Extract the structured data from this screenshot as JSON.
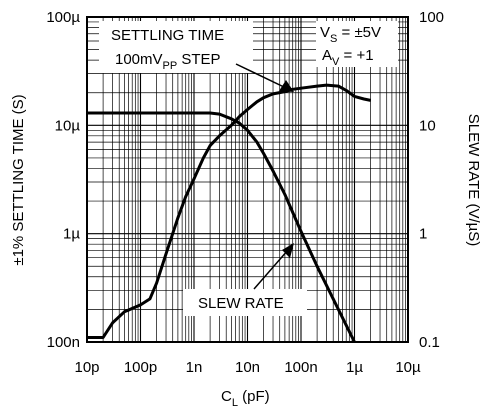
{
  "chart_data": {
    "type": "line",
    "x_scale": "log",
    "y_scale": "log",
    "grid": true,
    "xlim": [
      1e-11,
      1e-05
    ],
    "ylim_left": [
      1e-07,
      0.0001
    ],
    "ylim_right": [
      0.1,
      100
    ],
    "x_ticks": [
      {
        "value": 1e-11,
        "label": "10p"
      },
      {
        "value": 1e-10,
        "label": "100p"
      },
      {
        "value": 1e-09,
        "label": "1n"
      },
      {
        "value": 1e-08,
        "label": "10n"
      },
      {
        "value": 1e-07,
        "label": "100n"
      },
      {
        "value": 1e-06,
        "label": "1µ"
      },
      {
        "value": 1e-05,
        "label": "10µ"
      }
    ],
    "y_left_ticks": [
      {
        "value": 1e-07,
        "label": "100n"
      },
      {
        "value": 1e-06,
        "label": "1µ"
      },
      {
        "value": 1e-05,
        "label": "10µ"
      },
      {
        "value": 0.0001,
        "label": "100µ"
      }
    ],
    "y_right_ticks": [
      {
        "value": 0.1,
        "label": "0.1"
      },
      {
        "value": 1,
        "label": "1"
      },
      {
        "value": 10,
        "label": "10"
      },
      {
        "value": 100,
        "label": "100"
      }
    ],
    "xlabel": {
      "main": "C",
      "sub": "L",
      "rest": " (pF)"
    },
    "ylabel_left": "±1% SETTLING TIME (S)",
    "ylabel_right": "SLEW RATE (V/µS)",
    "series": [
      {
        "name": "SETTLING TIME",
        "axis": "left",
        "x": [
          1e-11,
          2e-11,
          3e-11,
          5e-11,
          1e-10,
          1.5e-10,
          2e-10,
          3e-10,
          5e-10,
          7e-10,
          1e-09,
          1.5e-09,
          2e-09,
          3e-09,
          5e-09,
          7e-09,
          1e-08,
          1.5e-08,
          2e-08,
          3e-08,
          5e-08,
          7e-08,
          1e-07,
          2e-07,
          3e-07,
          5e-07,
          7e-07,
          1e-06,
          1.5e-06,
          2e-06
        ],
        "y": [
          1.1e-07,
          1.1e-07,
          1.5e-07,
          1.9e-07,
          2.2e-07,
          2.5e-07,
          3.5e-07,
          6.5e-07,
          1.4e-06,
          2.2e-06,
          3.2e-06,
          5e-06,
          6.5e-06,
          8e-06,
          1e-05,
          1.2e-05,
          1.4e-05,
          1.65e-05,
          1.8e-05,
          1.95e-05,
          2.05e-05,
          2.15e-05,
          2.2e-05,
          2.3e-05,
          2.35e-05,
          2.3e-05,
          2.1e-05,
          1.85e-05,
          1.75e-05,
          1.7e-05
        ]
      },
      {
        "name": "SLEW RATE",
        "axis": "right",
        "x": [
          1e-11,
          1e-10,
          1e-09,
          2e-09,
          3e-09,
          5e-09,
          7e-09,
          1e-08,
          1.5e-08,
          2e-08,
          3e-08,
          5e-08,
          1e-07,
          2e-07,
          5e-07,
          1e-06
        ],
        "y": [
          13,
          13,
          13,
          13,
          12.7,
          11.5,
          10.5,
          9,
          7,
          5.5,
          3.8,
          2.3,
          1.05,
          0.5,
          0.2,
          0.1
        ]
      }
    ],
    "annotations": {
      "settling_title": "SETTLING TIME",
      "step_prefix": "100mV",
      "step_sub": "PP",
      "step_suffix": " STEP",
      "vs_main": "V",
      "vs_sub": "S",
      "vs_rest": " = ±5V",
      "av_main": "A",
      "av_sub": "V",
      "av_rest": " = +1",
      "slew_label": "SLEW RATE"
    }
  }
}
